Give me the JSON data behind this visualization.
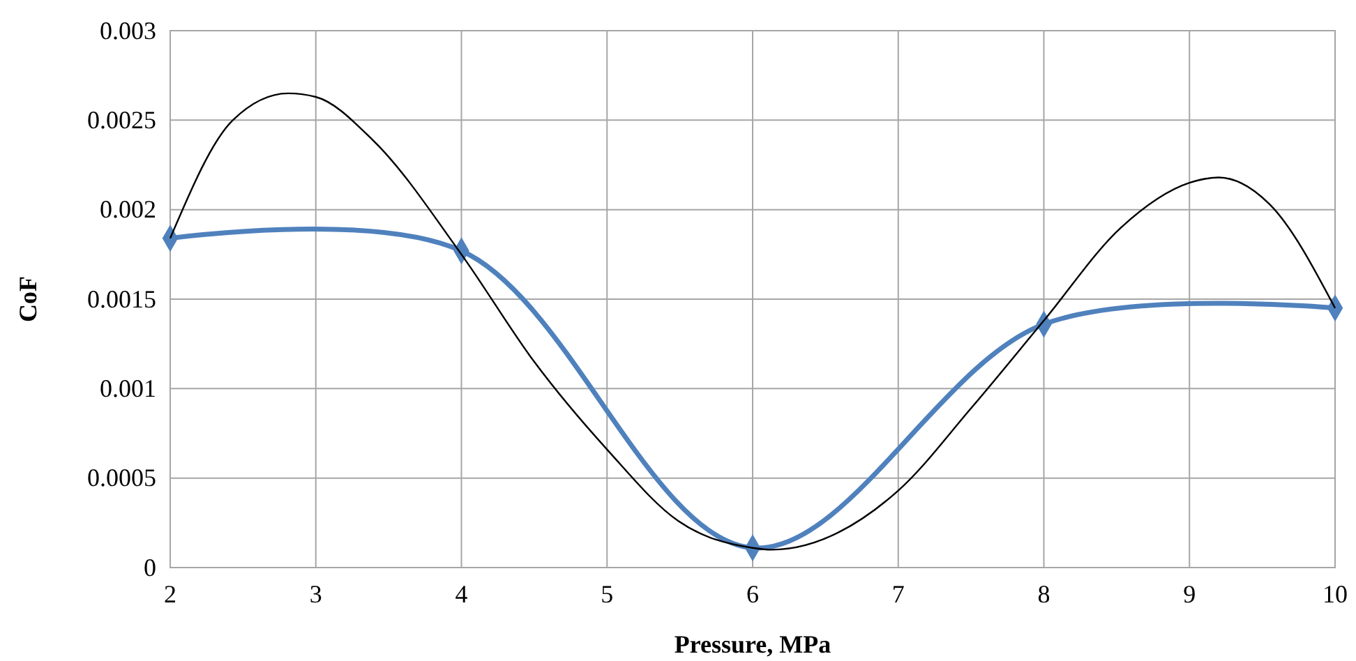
{
  "chart_data": {
    "type": "line",
    "xlabel": "Pressure, MPa",
    "ylabel": "CoF",
    "xlim": [
      2,
      10
    ],
    "xticks": [
      2,
      3,
      4,
      5,
      6,
      7,
      8,
      9,
      10
    ],
    "ylim": [
      0,
      0.003
    ],
    "yticks": [
      0,
      0.0005,
      0.001,
      0.0015,
      0.002,
      0.0025,
      0.003
    ],
    "grid": true,
    "series": [
      {
        "color": "#4f81bd",
        "marker": "diamond",
        "x": [
          2,
          4,
          6,
          8,
          10
        ],
        "values": [
          0.00184,
          0.00177,
          0.00011,
          0.00136,
          0.00145
        ]
      },
      {
        "color": "#000000",
        "marker": "none",
        "x": [
          2,
          2.43,
          2.81,
          3,
          3.39,
          4,
          4.5,
          5,
          5.49,
          6,
          6.13,
          7,
          7.5,
          8,
          8.53,
          9,
          9.2,
          9.55,
          10
        ],
        "values": [
          0.00184,
          0.0025,
          0.00265,
          0.00263,
          0.00239,
          0.00175,
          0.00115,
          0.00066,
          0.00026,
          0.00011,
          0.0001,
          0.00043,
          0.00089,
          0.00138,
          0.0019,
          0.00215,
          0.00218,
          0.00203,
          0.00145
        ]
      }
    ]
  }
}
